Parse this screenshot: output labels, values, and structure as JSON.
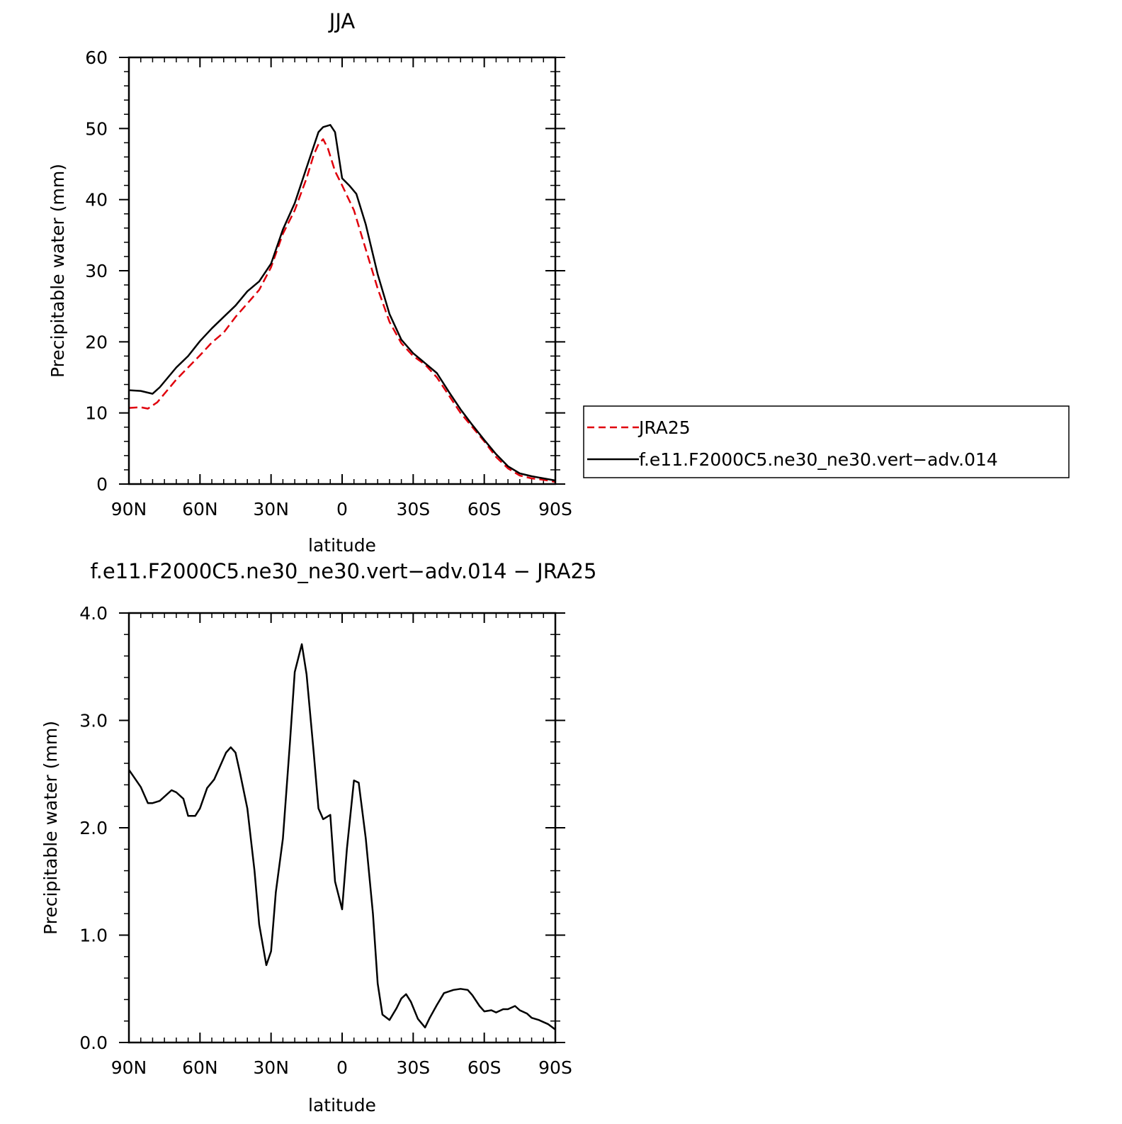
{
  "chart_data": [
    {
      "type": "line",
      "title": "JJA",
      "xlabel": "latitude",
      "ylabel": "Precipitable water (mm)",
      "xlim": [
        -90,
        90
      ],
      "ylim": [
        0,
        60
      ],
      "x_ticks": [
        -90,
        -60,
        -30,
        0,
        30,
        60,
        90
      ],
      "x_tick_labels": [
        "90N",
        "60N",
        "30N",
        "0",
        "30S",
        "60S",
        "90S"
      ],
      "y_ticks": [
        0,
        10,
        20,
        30,
        40,
        50,
        60
      ],
      "y_tick_labels": [
        "0",
        "10",
        "20",
        "30",
        "40",
        "50",
        "60"
      ],
      "grid": false,
      "legend_position": "right",
      "series": [
        {
          "name": "JRA25",
          "color": "#e0000c",
          "style": "dashed",
          "points": [
            [
              -90,
              10.7
            ],
            [
              -85,
              10.8
            ],
            [
              -82,
              10.6
            ],
            [
              -78,
              11.5
            ],
            [
              -70,
              14.7
            ],
            [
              -60,
              18.1
            ],
            [
              -55,
              19.9
            ],
            [
              -50,
              21.3
            ],
            [
              -45,
              23.5
            ],
            [
              -40,
              25.4
            ],
            [
              -35,
              27.3
            ],
            [
              -30,
              30.5
            ],
            [
              -25,
              35.2
            ],
            [
              -20,
              38.5
            ],
            [
              -15,
              43.0
            ],
            [
              -12,
              46.3
            ],
            [
              -10,
              47.8
            ],
            [
              -8,
              48.5
            ],
            [
              -6,
              47.2
            ],
            [
              -3,
              44.0
            ],
            [
              0,
              42.0
            ],
            [
              5,
              38.5
            ],
            [
              10,
              33.0
            ],
            [
              15,
              27.5
            ],
            [
              20,
              22.8
            ],
            [
              25,
              19.8
            ],
            [
              30,
              18.0
            ],
            [
              35,
              16.8
            ],
            [
              40,
              15.0
            ],
            [
              45,
              12.5
            ],
            [
              50,
              10.0
            ],
            [
              55,
              8.0
            ],
            [
              60,
              6.0
            ],
            [
              65,
              3.8
            ],
            [
              70,
              2.2
            ],
            [
              75,
              1.2
            ],
            [
              80,
              0.8
            ],
            [
              85,
              0.6
            ],
            [
              90,
              0.3
            ]
          ]
        },
        {
          "name": "f.e11.F2000C5.ne30_ne30.vert−adv.014",
          "color": "#000000",
          "style": "solid",
          "points": [
            [
              -90,
              13.2
            ],
            [
              -85,
              13.1
            ],
            [
              -80,
              12.7
            ],
            [
              -77,
              13.6
            ],
            [
              -70,
              16.4
            ],
            [
              -65,
              18.0
            ],
            [
              -60,
              20.1
            ],
            [
              -55,
              21.9
            ],
            [
              -50,
              23.5
            ],
            [
              -45,
              25.1
            ],
            [
              -40,
              27.1
            ],
            [
              -35,
              28.5
            ],
            [
              -30,
              31.0
            ],
            [
              -25,
              35.8
            ],
            [
              -20,
              39.5
            ],
            [
              -15,
              44.5
            ],
            [
              -12,
              47.5
            ],
            [
              -10,
              49.5
            ],
            [
              -8,
              50.2
            ],
            [
              -5,
              50.5
            ],
            [
              -3,
              49.5
            ],
            [
              0,
              43.0
            ],
            [
              3,
              42.0
            ],
            [
              6,
              40.8
            ],
            [
              10,
              36.5
            ],
            [
              15,
              29.5
            ],
            [
              20,
              23.9
            ],
            [
              25,
              20.3
            ],
            [
              30,
              18.4
            ],
            [
              35,
              17.0
            ],
            [
              40,
              15.6
            ],
            [
              45,
              13.0
            ],
            [
              50,
              10.5
            ],
            [
              55,
              8.3
            ],
            [
              60,
              6.2
            ],
            [
              65,
              4.2
            ],
            [
              70,
              2.5
            ],
            [
              75,
              1.5
            ],
            [
              80,
              1.1
            ],
            [
              85,
              0.8
            ],
            [
              90,
              0.5
            ]
          ]
        }
      ]
    },
    {
      "type": "line",
      "title": "f.e11.F2000C5.ne30_ne30.vert−adv.014 − JRA25",
      "xlabel": "latitude",
      "ylabel": "Precipitable water (mm)",
      "xlim": [
        -90,
        90
      ],
      "ylim": [
        0.0,
        4.0
      ],
      "x_ticks": [
        -90,
        -60,
        -30,
        0,
        30,
        60,
        90
      ],
      "x_tick_labels": [
        "90N",
        "60N",
        "30N",
        "0",
        "30S",
        "60S",
        "90S"
      ],
      "y_ticks": [
        0.0,
        1.0,
        2.0,
        3.0,
        4.0
      ],
      "y_tick_labels": [
        "0.0",
        "1.0",
        "2.0",
        "3.0",
        "4.0"
      ],
      "grid": false,
      "series": [
        {
          "color": "#000000",
          "style": "solid",
          "points": [
            [
              -90,
              2.54
            ],
            [
              -85,
              2.38
            ],
            [
              -82,
              2.23
            ],
            [
              -80,
              2.23
            ],
            [
              -77,
              2.25
            ],
            [
              -72,
              2.35
            ],
            [
              -70,
              2.33
            ],
            [
              -67,
              2.27
            ],
            [
              -65,
              2.11
            ],
            [
              -62,
              2.11
            ],
            [
              -60,
              2.18
            ],
            [
              -57,
              2.37
            ],
            [
              -54,
              2.45
            ],
            [
              -52,
              2.55
            ],
            [
              -49,
              2.7
            ],
            [
              -47,
              2.75
            ],
            [
              -45,
              2.7
            ],
            [
              -43,
              2.5
            ],
            [
              -40,
              2.18
            ],
            [
              -37,
              1.6
            ],
            [
              -35,
              1.1
            ],
            [
              -32,
              0.72
            ],
            [
              -30,
              0.85
            ],
            [
              -28,
              1.4
            ],
            [
              -25,
              1.9
            ],
            [
              -22,
              2.8
            ],
            [
              -20,
              3.45
            ],
            [
              -17,
              3.71
            ],
            [
              -15,
              3.43
            ],
            [
              -12,
              2.7
            ],
            [
              -10,
              2.18
            ],
            [
              -8,
              2.08
            ],
            [
              -5,
              2.12
            ],
            [
              -3,
              1.5
            ],
            [
              0,
              1.24
            ],
            [
              2,
              1.8
            ],
            [
              5,
              2.44
            ],
            [
              7,
              2.42
            ],
            [
              10,
              1.9
            ],
            [
              13,
              1.2
            ],
            [
              15,
              0.55
            ],
            [
              17,
              0.26
            ],
            [
              20,
              0.21
            ],
            [
              23,
              0.32
            ],
            [
              25,
              0.41
            ],
            [
              27,
              0.45
            ],
            [
              29,
              0.38
            ],
            [
              32,
              0.22
            ],
            [
              35,
              0.14
            ],
            [
              37,
              0.23
            ],
            [
              40,
              0.35
            ],
            [
              43,
              0.46
            ],
            [
              47,
              0.49
            ],
            [
              50,
              0.5
            ],
            [
              53,
              0.49
            ],
            [
              55,
              0.44
            ],
            [
              58,
              0.34
            ],
            [
              60,
              0.29
            ],
            [
              63,
              0.3
            ],
            [
              65,
              0.28
            ],
            [
              68,
              0.31
            ],
            [
              70,
              0.31
            ],
            [
              73,
              0.34
            ],
            [
              75,
              0.3
            ],
            [
              78,
              0.27
            ],
            [
              80,
              0.23
            ],
            [
              83,
              0.21
            ],
            [
              87,
              0.17
            ],
            [
              90,
              0.12
            ]
          ]
        }
      ]
    }
  ]
}
